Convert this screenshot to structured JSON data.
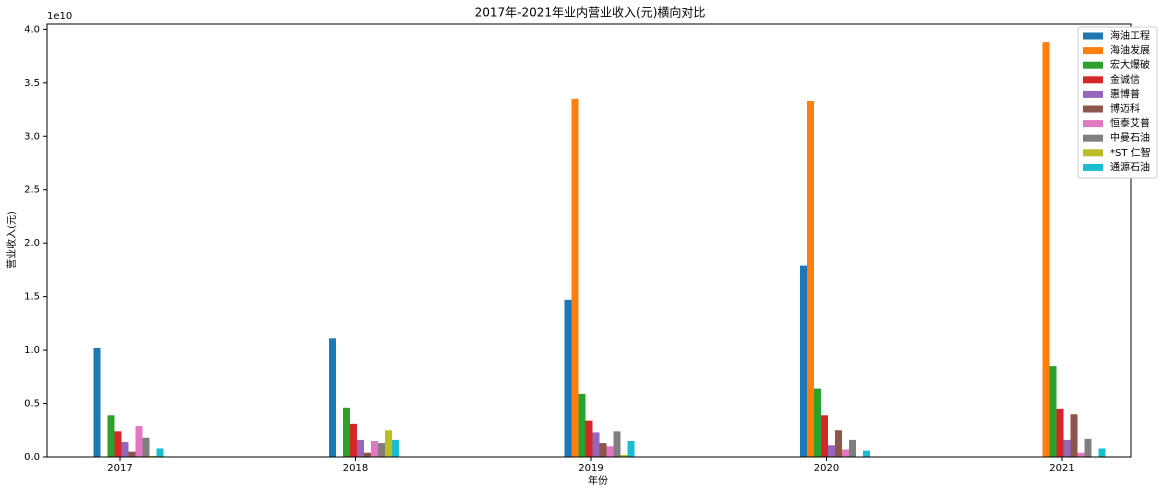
{
  "chart_data": {
    "type": "bar",
    "title": "2017年-2021年业内营业收入(元)横向对比",
    "x_label": "年份",
    "y_label": "营业收入(元)",
    "y_offset_label": "1e10",
    "categories": [
      "2017",
      "2018",
      "2019",
      "2020",
      "2021"
    ],
    "series": [
      {
        "name": "海油工程",
        "color": "#1f77b4",
        "values": [
          1.02,
          1.11,
          1.47,
          1.79,
          null
        ]
      },
      {
        "name": "海油发展",
        "color": "#ff7f0e",
        "values": [
          null,
          null,
          3.35,
          3.33,
          3.88
        ]
      },
      {
        "name": "宏大爆破",
        "color": "#2ca02c",
        "values": [
          0.39,
          0.46,
          0.59,
          0.64,
          0.85
        ]
      },
      {
        "name": "金诚信",
        "color": "#d62728",
        "values": [
          0.24,
          0.31,
          0.34,
          0.39,
          0.45
        ]
      },
      {
        "name": "惠博普",
        "color": "#9467bd",
        "values": [
          0.14,
          0.16,
          0.23,
          0.11,
          0.16
        ]
      },
      {
        "name": "博迈科",
        "color": "#8c564b",
        "values": [
          0.05,
          0.04,
          0.13,
          0.25,
          0.4
        ]
      },
      {
        "name": "恒泰艾普",
        "color": "#e377c2",
        "values": [
          0.29,
          0.15,
          0.1,
          0.07,
          0.04
        ]
      },
      {
        "name": "中曼石油",
        "color": "#7f7f7f",
        "values": [
          0.18,
          0.13,
          0.24,
          0.16,
          0.17
        ]
      },
      {
        "name": "*ST 仁智",
        "color": "#bcbd22",
        "values": [
          0.01,
          0.25,
          0.02,
          null,
          null
        ]
      },
      {
        "name": "通源石油",
        "color": "#17becf",
        "values": [
          0.08,
          0.16,
          0.15,
          0.06,
          0.08
        ]
      }
    ],
    "ylim": [
      0,
      4.05
    ],
    "yticks": [
      {
        "value": 0,
        "label": "0.0"
      },
      0.5,
      {
        "value": 1,
        "label": "1.0"
      },
      1.5,
      {
        "value": 2,
        "label": "2.0"
      },
      2.5,
      {
        "value": 3,
        "label": "3.0"
      },
      3.5,
      {
        "value": 4,
        "label": "4.0"
      }
    ],
    "legend": "upper right"
  }
}
